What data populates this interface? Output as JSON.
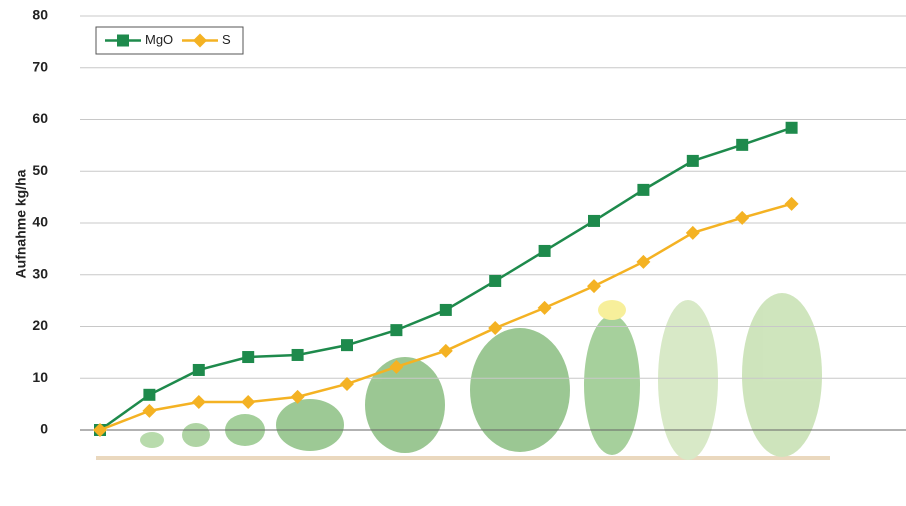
{
  "chart_data": {
    "type": "line",
    "y_label": "Aufnahme kg/ha",
    "categories": [
      null,
      null,
      null,
      null,
      null,
      null,
      null,
      null,
      null,
      null,
      null,
      null,
      null,
      null,
      null
    ],
    "series": [
      {
        "name": "MgO",
        "color": "#1e8a4c",
        "marker": "square",
        "values": [
          0,
          6.8,
          11.6,
          14.1,
          14.5,
          16.4,
          19.3,
          23.2,
          28.8,
          34.6,
          40.4,
          46.4,
          52,
          55.1,
          58.4
        ]
      },
      {
        "name": "S",
        "color": "#f4b223",
        "marker": "diamond",
        "values": [
          0,
          3.7,
          5.4,
          5.4,
          6.4,
          8.9,
          12.2,
          15.3,
          19.7,
          23.6,
          27.8,
          32.5,
          38.1,
          41,
          43.7
        ]
      }
    ],
    "ylim": [
      0,
      80
    ],
    "yticks": [
      0,
      10,
      20,
      30,
      40,
      50,
      60,
      70,
      80
    ],
    "grid": true,
    "legend": "top-left"
  }
}
